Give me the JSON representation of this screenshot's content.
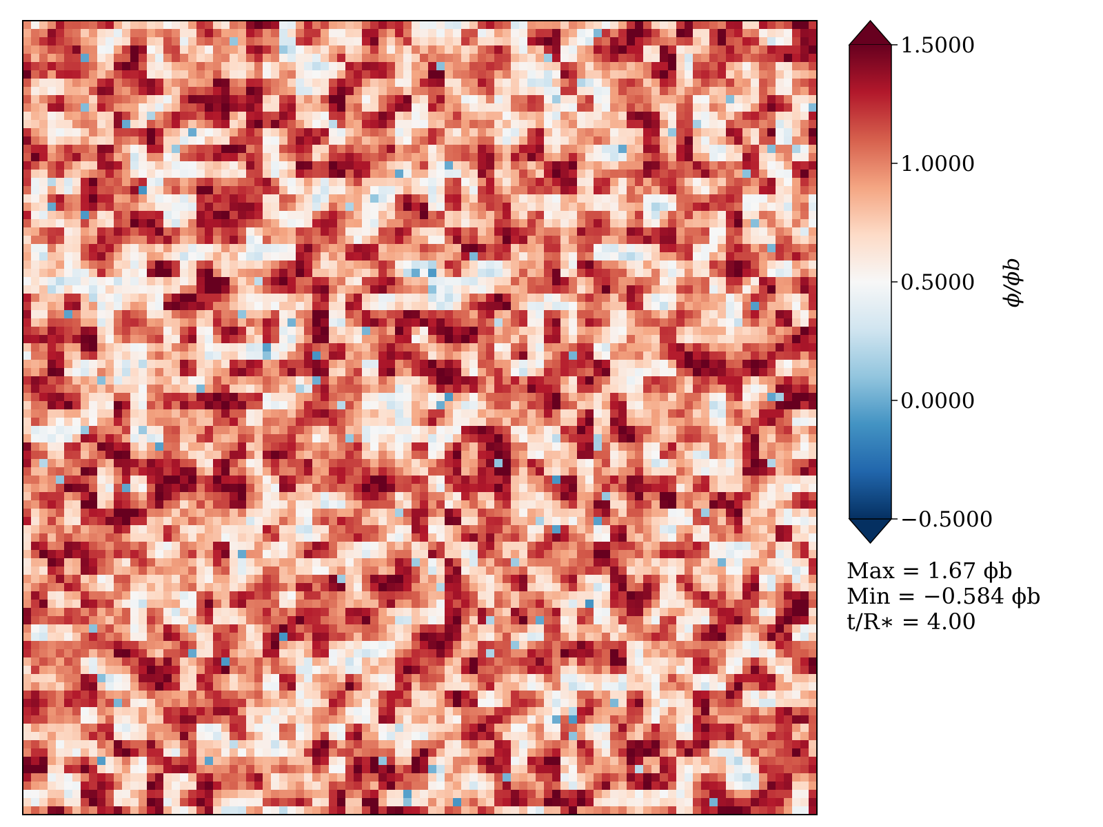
{
  "chart_data": {
    "type": "heatmap",
    "title": "",
    "xlabel": "",
    "ylabel": "",
    "colormap": "RdBu_r",
    "colorbar": {
      "label": "ϕ/ϕ_b",
      "label_display": "ϕ/ϕb",
      "range": [
        -0.5,
        1.5
      ],
      "extend": "both",
      "ticks": [
        1.5,
        1.0,
        0.5,
        0.0,
        -0.5
      ],
      "tick_labels": [
        "1.5000",
        "1.0000",
        "0.5000",
        "0.0000",
        "−0.5000"
      ]
    },
    "axes_ticks": "none",
    "field_mean_level": 0.95,
    "field_dominant": "red (about 0.5 to 1.5)",
    "field_minority": "scattered blue patches (about -0.5 to 0.3)"
  },
  "annotations": {
    "max_line": "Max = 1.67 ϕb",
    "min_line": "Min = −0.584 ϕb",
    "time_line": "t/R∗ = 4.00"
  },
  "colors": {
    "dark_red": "#67001f",
    "red": "#b2182b",
    "light_red": "#d6604d",
    "salmon": "#f4a582",
    "pale": "#fddbc7",
    "white": "#f7f7f7",
    "pale_blue": "#d1e5f0",
    "light_blue": "#92c5de",
    "blue": "#4393c3",
    "mid_blue": "#2166ac",
    "dark_blue": "#053061"
  }
}
